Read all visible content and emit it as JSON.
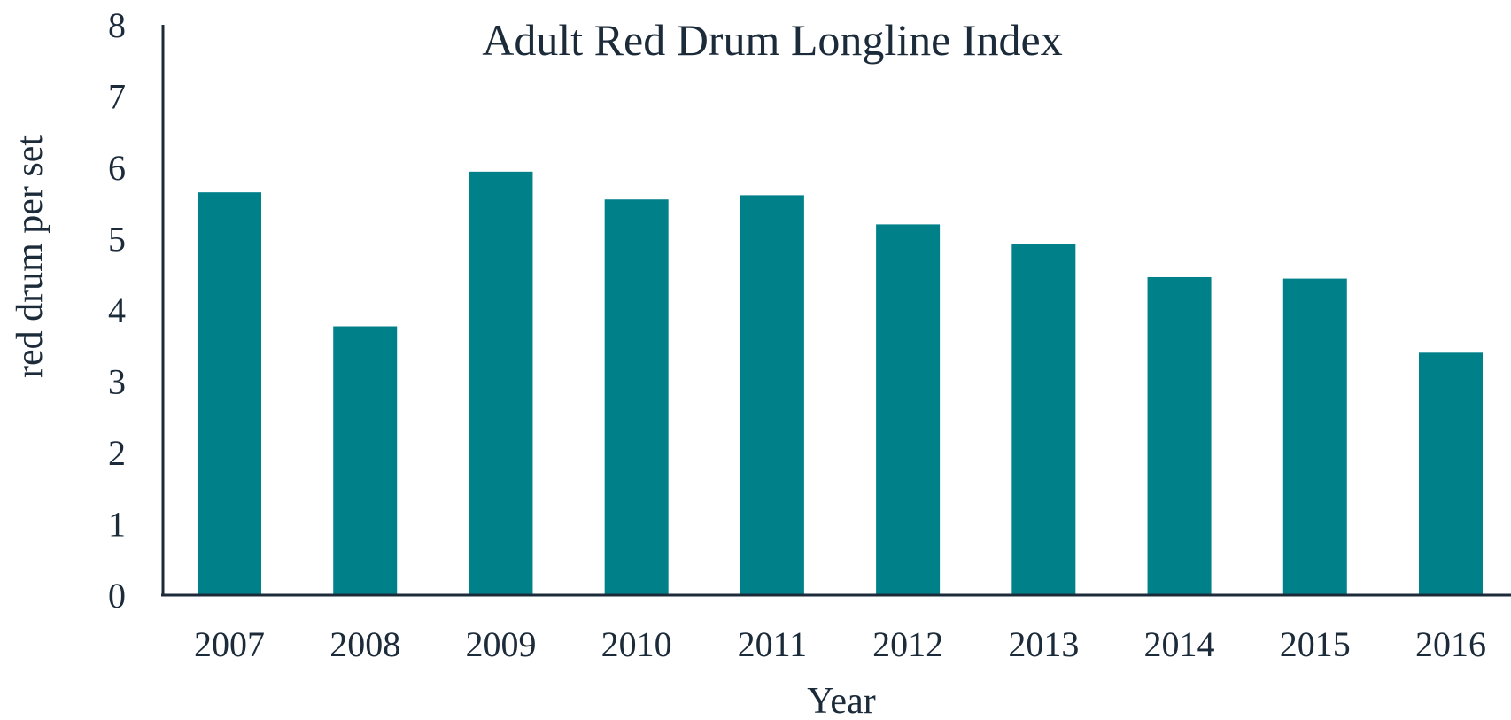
{
  "chart_data": {
    "type": "bar",
    "title": "Adult Red Drum Longline Index",
    "xlabel": "Year",
    "ylabel": "red drum per set",
    "categories": [
      "2007",
      "2008",
      "2009",
      "2010",
      "2011",
      "2012",
      "2013",
      "2014",
      "2015",
      "2016"
    ],
    "values": [
      5.65,
      3.77,
      5.94,
      5.55,
      5.61,
      5.2,
      4.93,
      4.46,
      4.44,
      3.4
    ],
    "ylim": [
      0,
      8
    ],
    "yticks": [
      "0",
      "1",
      "2",
      "3",
      "4",
      "5",
      "6",
      "7",
      "8"
    ],
    "grid": false,
    "legend": "none",
    "colors": {
      "bar": "#00818a",
      "axis": "#1c2b3a",
      "text": "#1c2b3a"
    }
  }
}
